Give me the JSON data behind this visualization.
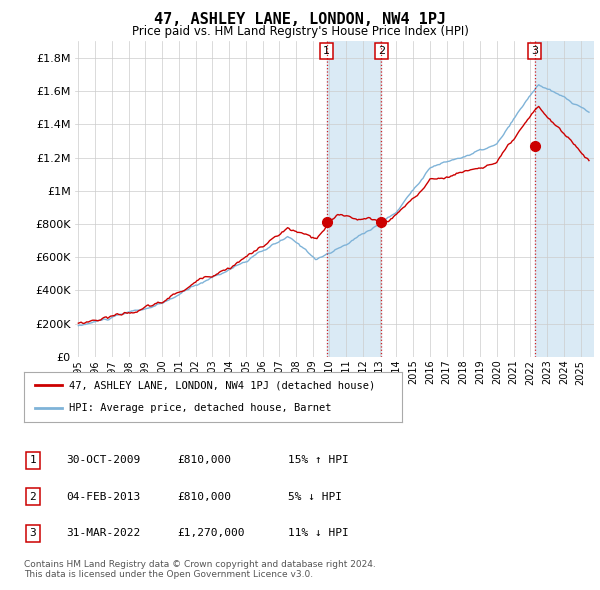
{
  "title": "47, ASHLEY LANE, LONDON, NW4 1PJ",
  "subtitle": "Price paid vs. HM Land Registry's House Price Index (HPI)",
  "ytick_values": [
    0,
    200000,
    400000,
    600000,
    800000,
    1000000,
    1200000,
    1400000,
    1600000,
    1800000
  ],
  "ylim": [
    0,
    1900000
  ],
  "xlim_start": 1994.8,
  "xlim_end": 2025.8,
  "transaction_dates": [
    2009.83,
    2013.09,
    2022.25
  ],
  "transaction_prices": [
    810000,
    810000,
    1270000
  ],
  "transaction_labels": [
    "1",
    "2",
    "3"
  ],
  "legend_line1": "47, ASHLEY LANE, LONDON, NW4 1PJ (detached house)",
  "legend_line2": "HPI: Average price, detached house, Barnet",
  "table_rows": [
    [
      "1",
      "30-OCT-2009",
      "£810,000",
      "15% ↑ HPI"
    ],
    [
      "2",
      "04-FEB-2013",
      "£810,000",
      "5% ↓ HPI"
    ],
    [
      "3",
      "31-MAR-2022",
      "£1,270,000",
      "11% ↓ HPI"
    ]
  ],
  "footer": "Contains HM Land Registry data © Crown copyright and database right 2024.\nThis data is licensed under the Open Government Licence v3.0.",
  "hpi_color": "#7fb3d8",
  "price_color": "#cc0000",
  "transaction_line_color": "#cc0000",
  "shading_color": "#daeaf5",
  "grid_color": "#cccccc",
  "background_color": "#ffffff"
}
